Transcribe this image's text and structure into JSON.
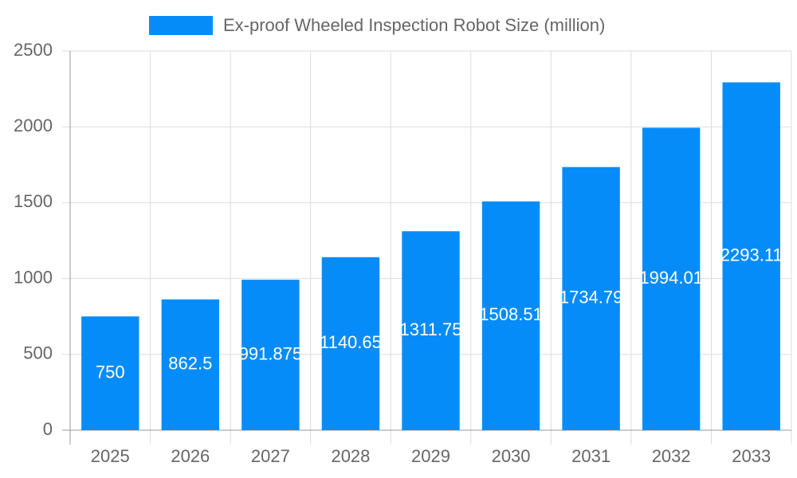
{
  "chart_data": {
    "type": "bar",
    "categories": [
      "2025",
      "2026",
      "2027",
      "2028",
      "2029",
      "2030",
      "2031",
      "2032",
      "2033"
    ],
    "series": [
      {
        "name": "Ex-proof Wheeled Inspection Robot Size (million)",
        "color": "#068cf9",
        "values": [
          750,
          862.5,
          991.875,
          1140.65,
          1311.75,
          1508.51,
          1734.79,
          1994.01,
          2293.11
        ]
      }
    ],
    "ylim": [
      0,
      2500
    ],
    "yticks": [
      0,
      500,
      1000,
      1500,
      2000,
      2500
    ],
    "grid": true,
    "legend": "top"
  }
}
